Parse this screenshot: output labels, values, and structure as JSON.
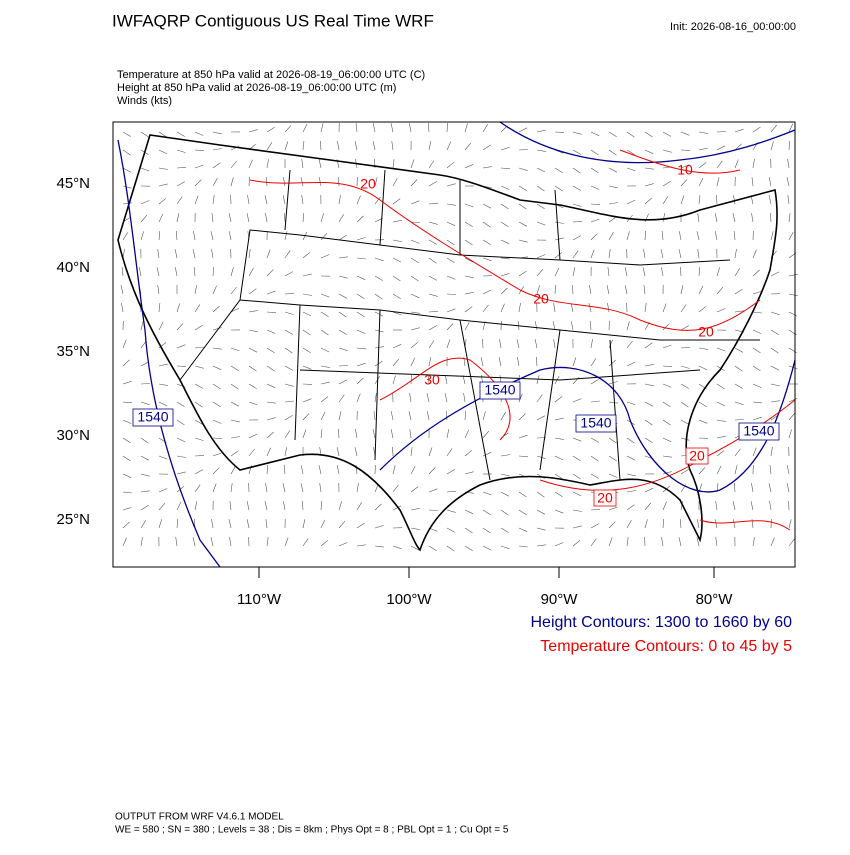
{
  "header": {
    "title": "IWFAQRP Contiguous US Real Time WRF",
    "init": "Init: 2026-08-16_00:00:00"
  },
  "fields": [
    "Temperature at 850 hPa valid at 2026-08-19_06:00:00 UTC   (C)",
    "Height at 850 hPa valid at 2026-08-19_06:00:00 UTC   (m)",
    "Winds   (kts)"
  ],
  "map": {
    "lat_labels": [
      "45°N",
      "40°N",
      "35°N",
      "30°N",
      "25°N"
    ],
    "lon_labels": [
      "110°W",
      "100°W",
      "90°W",
      "80°W"
    ],
    "height_labels": [
      "1540",
      "1540",
      "1540",
      "1540"
    ],
    "temp_labels": [
      "20",
      "10",
      "20",
      "30",
      "20",
      "20",
      "20"
    ]
  },
  "legend": [
    "Height Contours: 1300 to 1660 by 60",
    "Temperature Contours: 0 to 45 by 5"
  ],
  "footer": [
    "OUTPUT FROM WRF V4.6.1 MODEL",
    "WE = 580 ; SN = 380 ; Levels = 38 ; Dis = 8km ; Phys Opt = 8 ; PBL Opt = 1 ; Cu Opt = 5"
  ]
}
